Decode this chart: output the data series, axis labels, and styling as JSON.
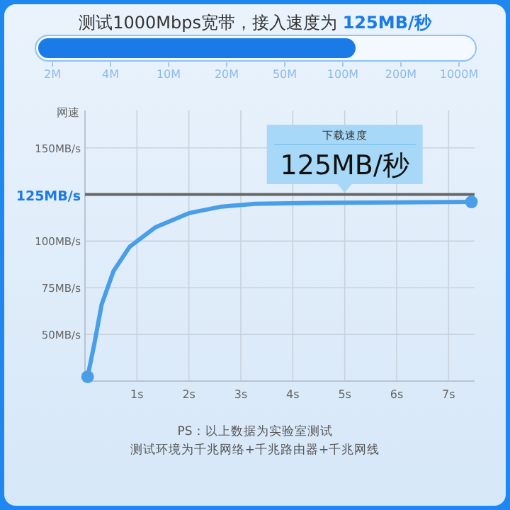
{
  "chart_data": [
    {
      "type": "other",
      "title": "测试1000Mbps宽带，接入速度为 **125MB/秒**",
      "annotations": [
        "2M",
        "4M",
        "10M",
        "20M",
        "50M",
        "100M",
        "200M",
        "1000M"
      ]
    },
    {
      "type": "line",
      "ylabel": "网速",
      "xlim": [
        0,
        7.5
      ],
      "ylim": [
        25,
        170
      ],
      "grid": true,
      "xticks": [
        {
          "value": 1,
          "label": "1s"
        },
        {
          "value": 2,
          "label": "2s"
        },
        {
          "value": 3,
          "label": "3s"
        },
        {
          "value": 4,
          "label": "4s"
        },
        {
          "value": 5,
          "label": "5s"
        },
        {
          "value": 6,
          "label": "6s"
        },
        {
          "value": 7,
          "label": "7s"
        }
      ],
      "yticks": [
        {
          "value": 50,
          "label": "50MB/s"
        },
        {
          "value": 75,
          "label": "75MB/s"
        },
        {
          "value": 100,
          "label": "100MB/s"
        },
        {
          "value": 150,
          "label": "150MB/s"
        }
      ],
      "x": [
        0.05,
        0.18,
        0.32,
        0.55,
        0.86,
        1.36,
        2.0,
        2.63,
        3.27,
        4.36,
        5.45,
        7.44
      ],
      "series": [
        {
          "color": "#4a9ee8",
          "values": [
            27.3,
            45,
            66,
            84,
            97,
            107.5,
            115,
            118.5,
            120,
            120.5,
            120.7,
            121
          ]
        }
      ],
      "ref_lines": [
        {
          "axis": "y",
          "value": 125,
          "label": "125MB/s",
          "color": "#666666"
        }
      ],
      "annotations": [
        "下载速度",
        "125MB/秒",
        "PS：以上数据为实验室测试",
        "测试环境为千兆网络+千兆路由器+千兆网线"
      ]
    }
  ]
}
